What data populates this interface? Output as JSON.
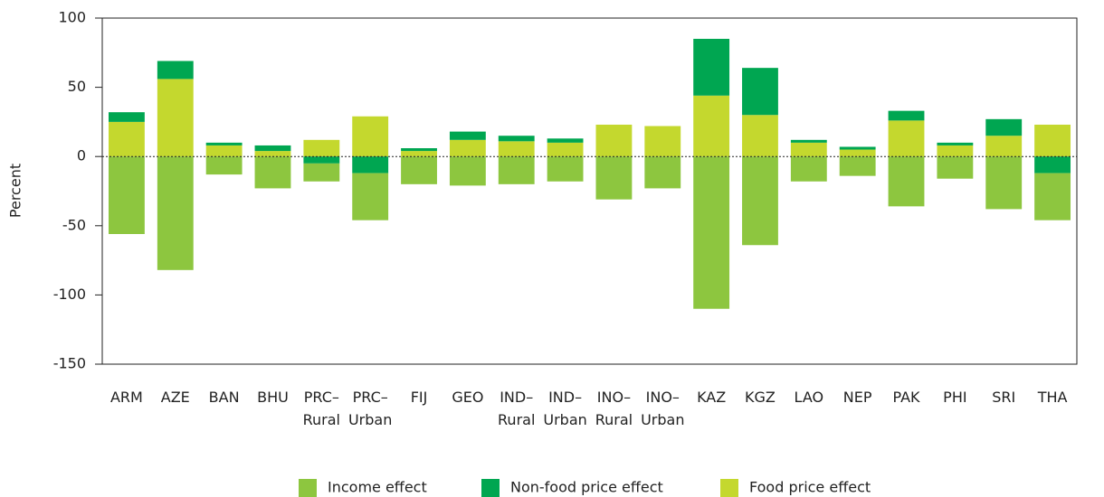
{
  "chart_data": {
    "type": "stacked_bar",
    "y_label": "Percent",
    "categories": [
      "ARM",
      "AZE",
      "BAN",
      "BHU",
      "PRC–\nRural",
      "PRC–\nUrban",
      "FIJ",
      "GEO",
      "IND–\nRural",
      "IND–\nUrban",
      "INO–\nRural",
      "INO–\nUrban",
      "KAZ",
      "KGZ",
      "LAO",
      "NEP",
      "PAK",
      "PHI",
      "SRI",
      "THA"
    ],
    "series": [
      {
        "name": "Income effect",
        "color": "#8dc63f",
        "values": [
          -56,
          -82,
          -13,
          -23,
          -13,
          -34,
          -20,
          -21,
          -20,
          -18,
          -31,
          -23,
          -110,
          -64,
          -18,
          -14,
          -36,
          -16,
          -38,
          -34
        ]
      },
      {
        "name": "Non-food price effect",
        "color": "#00a651",
        "values": [
          7,
          13,
          2,
          4,
          -5,
          -12,
          2,
          6,
          4,
          3,
          0,
          0,
          41,
          34,
          2,
          2,
          7,
          2,
          12,
          -12
        ]
      },
      {
        "name": "Food price effect",
        "color": "#c4d82e",
        "values": [
          25,
          56,
          8,
          4,
          12,
          29,
          4,
          12,
          11,
          10,
          23,
          22,
          44,
          30,
          10,
          5,
          26,
          8,
          15,
          23
        ]
      }
    ],
    "ylim": [
      -150,
      100
    ],
    "yticks": [
      -150,
      -100,
      -50,
      0,
      50,
      100
    ]
  }
}
